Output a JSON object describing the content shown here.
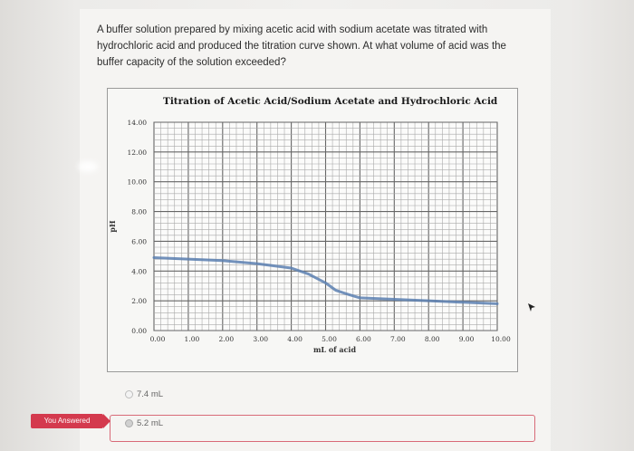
{
  "question": {
    "text": "A buffer solution prepared by mixing acetic acid with sodium acetate was titrated with hydrochloric acid and produced the titration curve shown. At what volume of acid was the buffer capacity of the solution exceeded?"
  },
  "answers": [
    {
      "label": "7.4 mL",
      "selected": false
    },
    {
      "label": "5.2 mL",
      "selected": true
    }
  ],
  "status_badge": "You Answered",
  "colors": {
    "badge": "#d43a4e",
    "selected_border": "#d86a78",
    "curve": "#5a7fb0",
    "grid": "#8a8a8a"
  },
  "chart_data": {
    "type": "line",
    "title": "Titration of Acetic Acid/Sodium Acetate and Hydrochloric Acid",
    "xlabel": "mL of acid",
    "ylabel": "pH",
    "xlim": [
      0,
      10
    ],
    "ylim": [
      0,
      14
    ],
    "x_ticks": [
      "0.00",
      "1.00",
      "2.00",
      "3.00",
      "4.00",
      "5.00",
      "6.00",
      "7.00",
      "8.00",
      "9.00",
      "10.00"
    ],
    "y_ticks": [
      "0.00",
      "2.00",
      "4.00",
      "6.00",
      "8.00",
      "10.00",
      "12.00",
      "14.00"
    ],
    "grid": true,
    "series": [
      {
        "x": [
          0,
          1,
          2,
          3,
          4,
          4.5,
          5,
          5.3,
          5.7,
          6,
          7,
          8,
          9,
          10
        ],
        "y": [
          4.9,
          4.8,
          4.7,
          4.5,
          4.2,
          3.8,
          3.2,
          2.7,
          2.4,
          2.2,
          2.1,
          2.0,
          1.9,
          1.8
        ]
      }
    ]
  }
}
